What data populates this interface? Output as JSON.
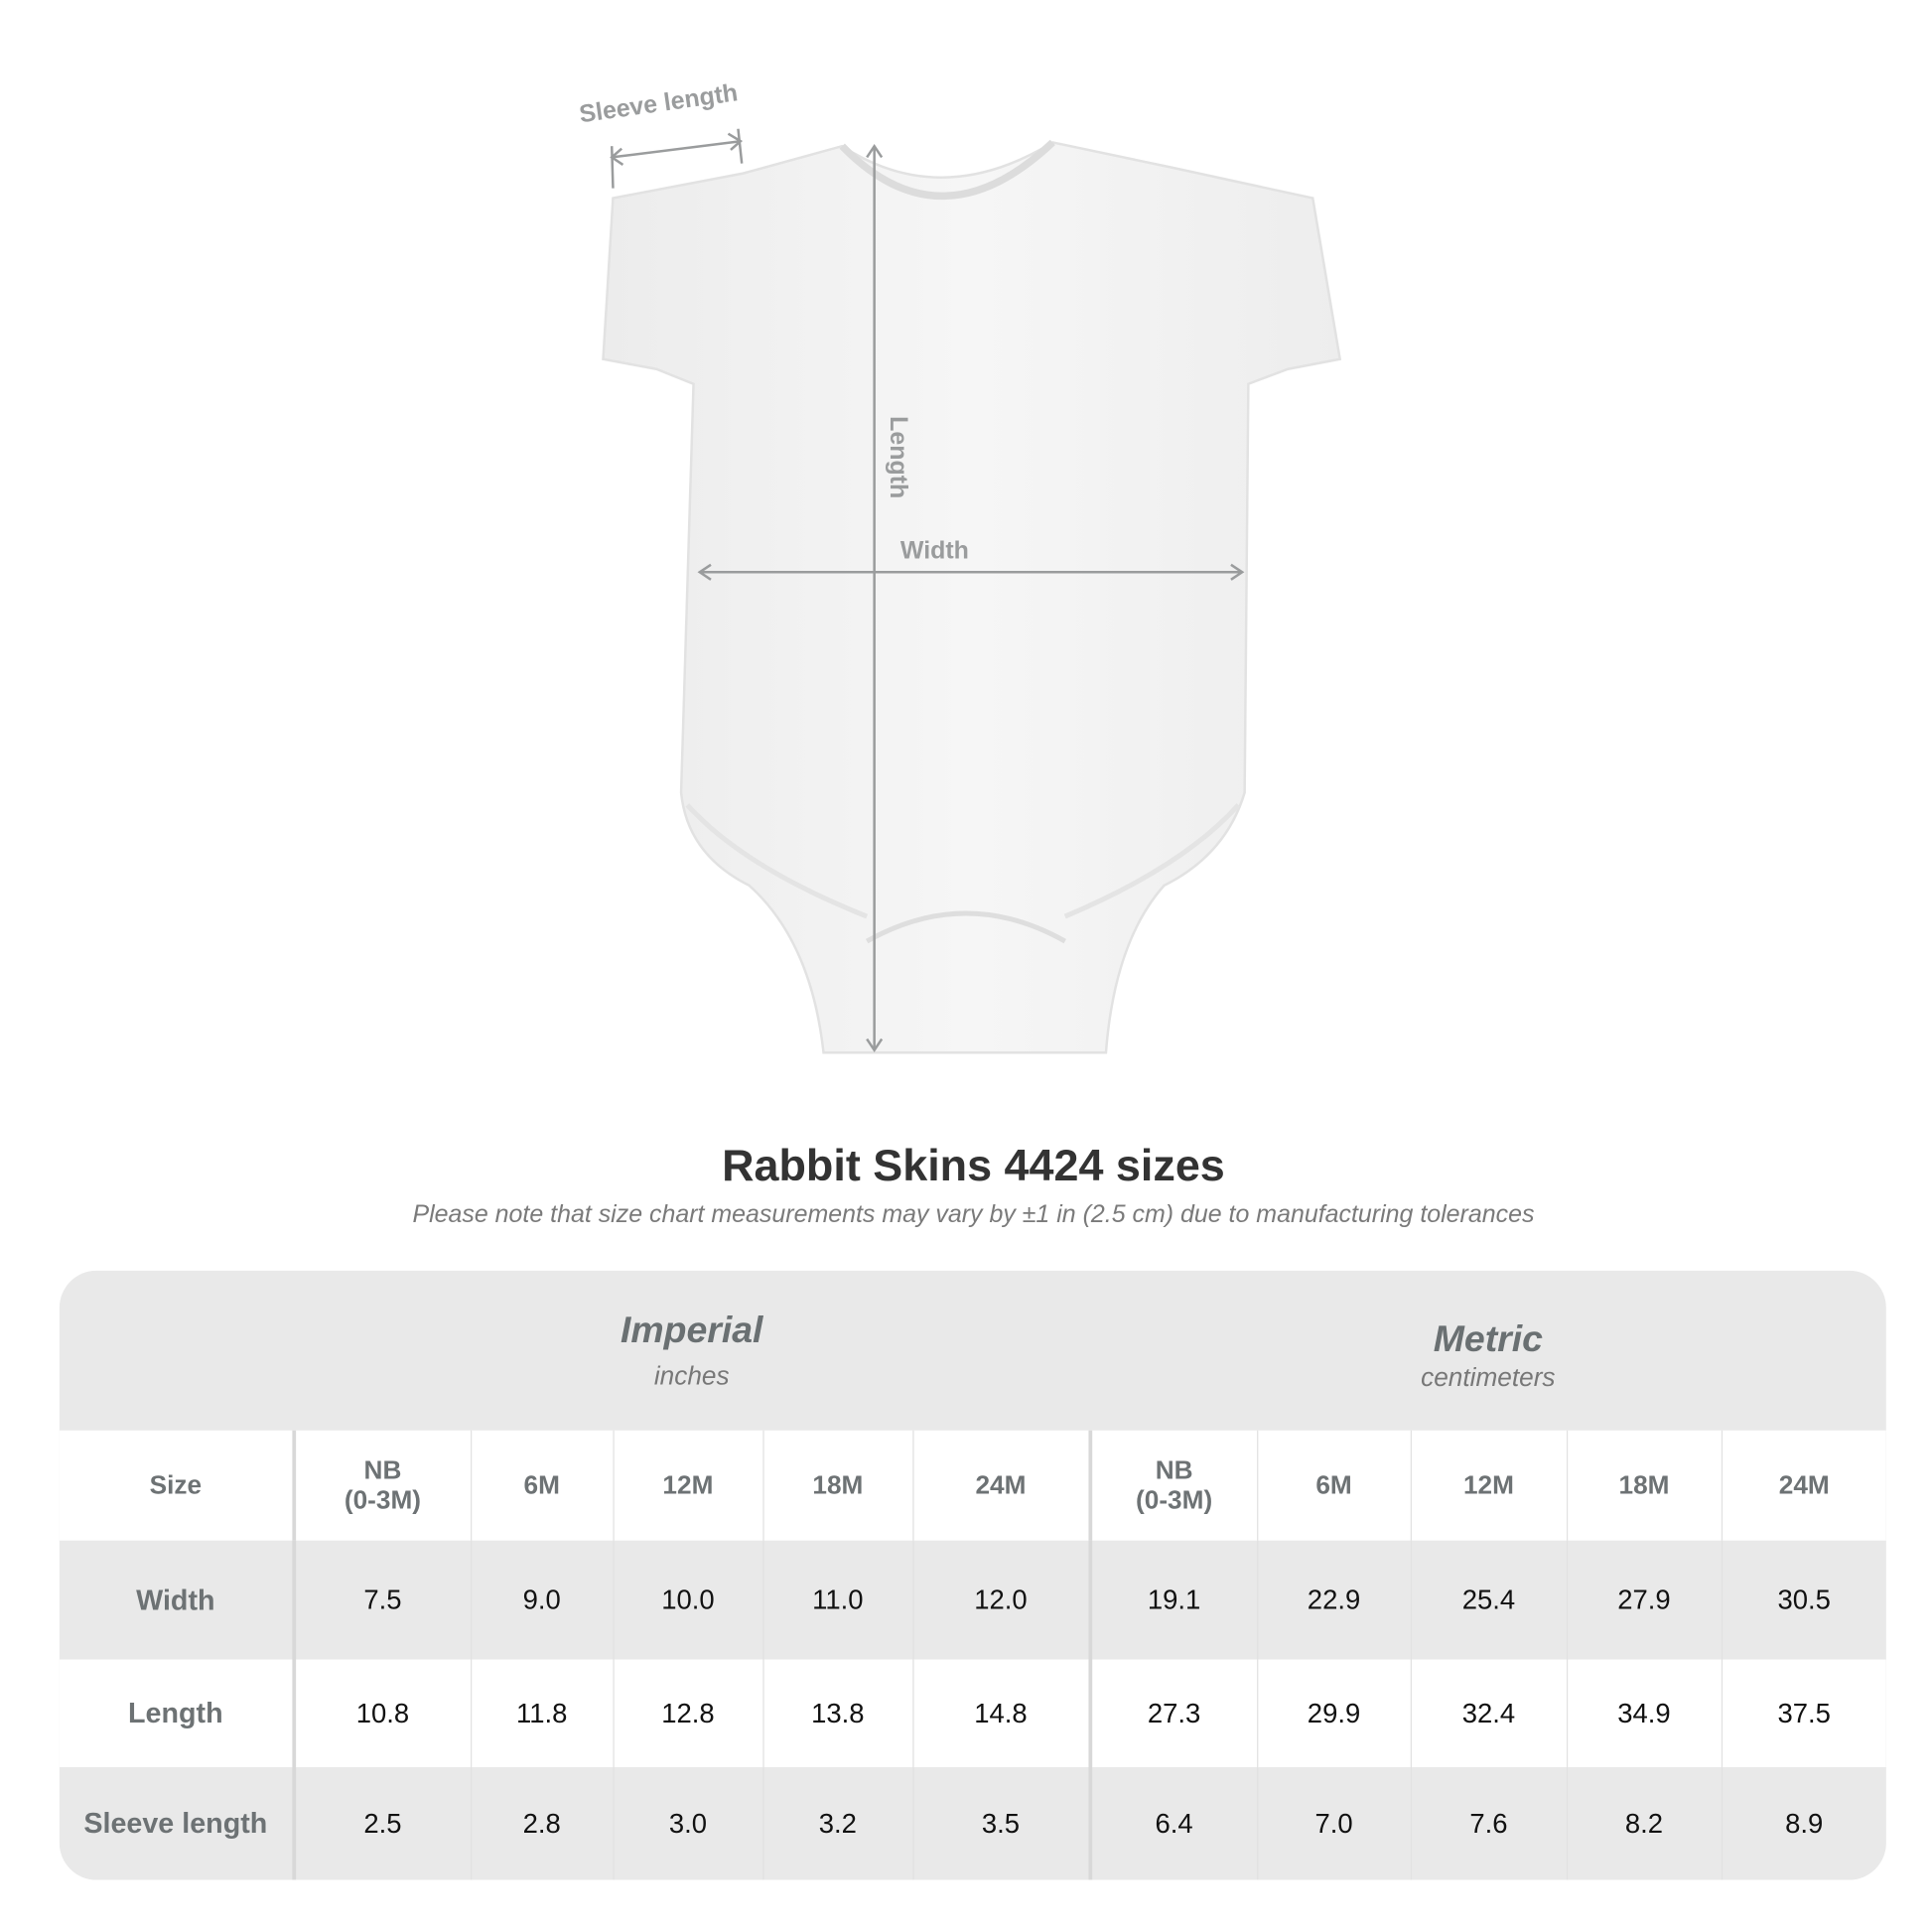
{
  "diagram": {
    "labels": {
      "sleeve": "Sleeve length",
      "length": "Length",
      "width": "Width"
    }
  },
  "title": "Rabbit Skins 4424 sizes",
  "note": "Please note that size chart measurements may vary by ±1 in (2.5 cm) due to manufacturing tolerances",
  "table": {
    "groups": [
      {
        "name": "Imperial",
        "unit": "inches"
      },
      {
        "name": "Metric",
        "unit": "centimeters"
      }
    ],
    "size_label": "Size",
    "sizes": [
      "NB\n(0-3M)",
      "6M",
      "12M",
      "18M",
      "24M",
      "NB\n(0-3M)",
      "6M",
      "12M",
      "18M",
      "24M"
    ],
    "rows": [
      {
        "label": "Width",
        "values": [
          "7.5",
          "9.0",
          "10.0",
          "11.0",
          "12.0",
          "19.1",
          "22.9",
          "25.4",
          "27.9",
          "30.5"
        ]
      },
      {
        "label": "Length",
        "values": [
          "10.8",
          "11.8",
          "12.8",
          "13.8",
          "14.8",
          "27.3",
          "29.9",
          "32.4",
          "34.9",
          "37.5"
        ]
      },
      {
        "label": "Sleeve length",
        "values": [
          "2.5",
          "2.8",
          "3.0",
          "3.2",
          "3.5",
          "6.4",
          "7.0",
          "7.6",
          "8.2",
          "8.9"
        ]
      }
    ]
  }
}
